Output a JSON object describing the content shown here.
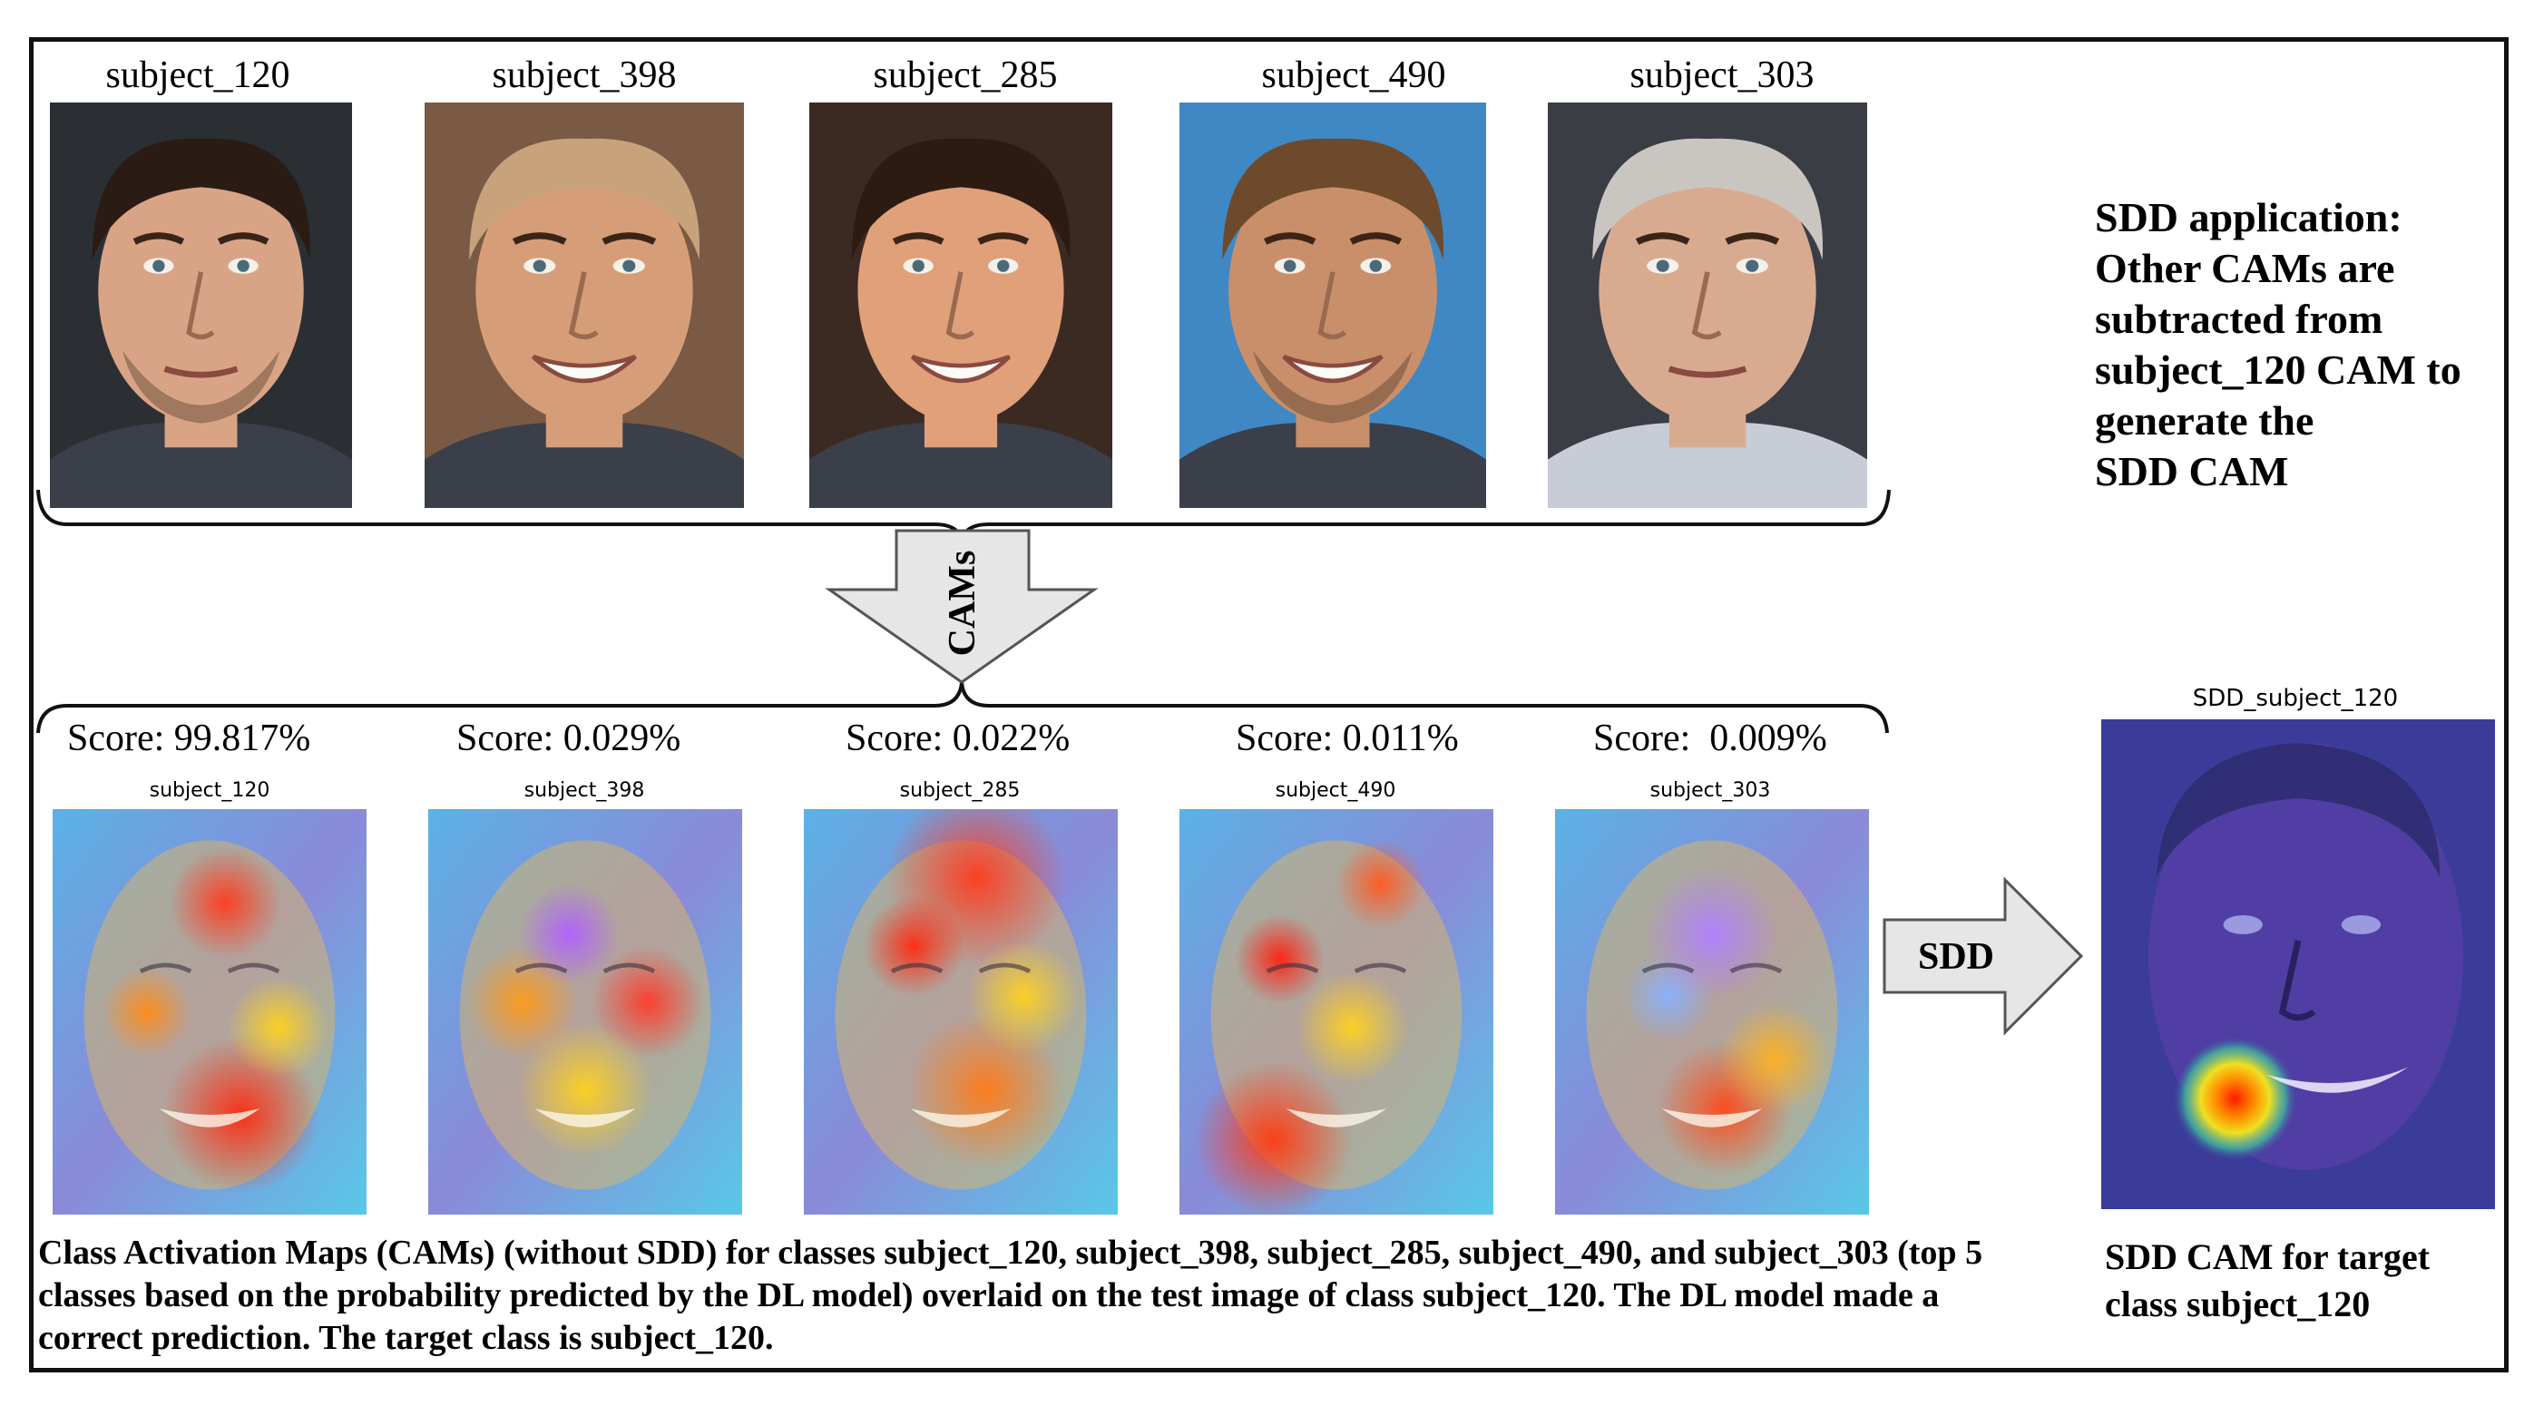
{
  "faces": [
    {
      "label": "subject_120",
      "skin": "#d9a486",
      "hair": "#2a1c14",
      "bg": "#2b2f33"
    },
    {
      "label": "subject_398",
      "skin": "#d69e78",
      "hair": "#c8a27a",
      "bg": "#7a5a44"
    },
    {
      "label": "subject_285",
      "skin": "#e0a07a",
      "hair": "#2d1b12",
      "bg": "#3b2a22"
    },
    {
      "label": "subject_490",
      "skin": "#c98f6a",
      "hair": "#6e4a2c",
      "bg": "#3f88c4"
    },
    {
      "label": "subject_303",
      "skin": "#d8ab90",
      "hair": "#c9c6c2",
      "bg": "#3a3d44"
    }
  ],
  "cams": [
    {
      "score": "Score: 99.817%",
      "title": "subject_120"
    },
    {
      "score": "Score: 0.029%",
      "title": "subject_398"
    },
    {
      "score": "Score: 0.022%",
      "title": "subject_285"
    },
    {
      "score": "Score: 0.011%",
      "title": "subject_490"
    },
    {
      "score": "Score:  0.009%",
      "title": "subject_303"
    }
  ],
  "arrows": {
    "cams_label": "CAMs",
    "sdd_label": "SDD"
  },
  "sdd_note": {
    "line1": "SDD application:",
    "line2": "Other CAMs are",
    "line3": "subtracted from",
    "line4": "subject_120 CAM to",
    "line5": "generate the",
    "line6": "SDD CAM"
  },
  "sdd_result": {
    "title": "SDD_subject_120",
    "caption_line1": "SDD CAM for target",
    "caption_line2": "class subject_120"
  },
  "caption": {
    "line1": "Class Activation Maps (CAMs) (without SDD) for classes subject_120, subject_398, subject_285, subject_490, and subject_303 (top 5",
    "line2": "classes based on the probability predicted by the DL model) overlaid on the test image of class subject_120. The DL model made a",
    "line3": "correct prediction. The target class is subject_120."
  },
  "colors": {
    "arrow_fill": "#e6e6e6",
    "arrow_stroke": "#555555",
    "frame": "#111111"
  }
}
